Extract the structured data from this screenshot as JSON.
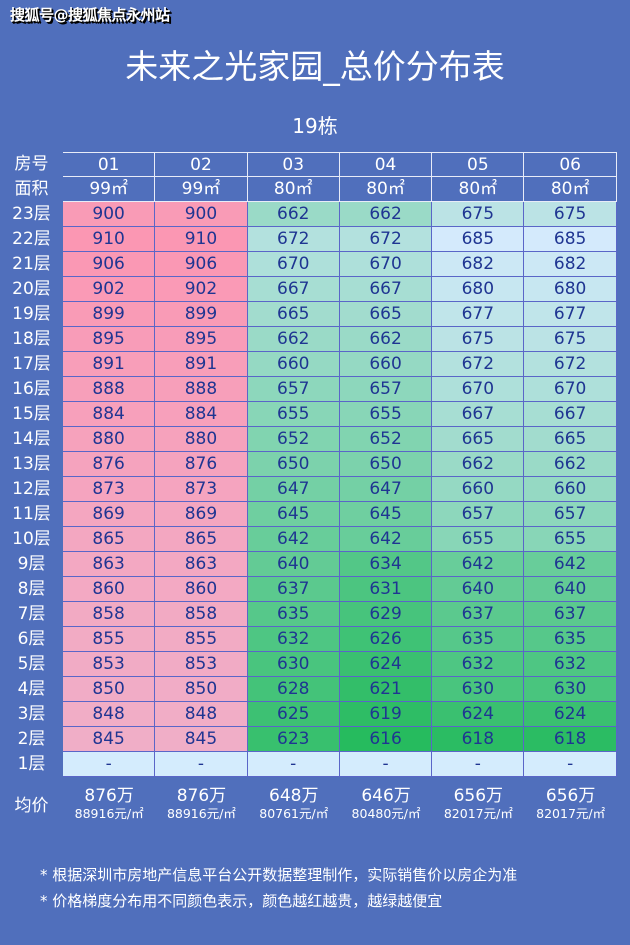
{
  "watermark": "搜狐号@搜狐焦点永州站",
  "title": "未来之光家园_总价分布表",
  "building": "19栋",
  "header": {
    "room_label": "房号",
    "area_label": "面积",
    "rooms": [
      "01",
      "02",
      "03",
      "04",
      "05",
      "06"
    ],
    "areas": [
      "99㎡",
      "99㎡",
      "80㎡",
      "80㎡",
      "80㎡",
      "80㎡"
    ]
  },
  "floors": [
    {
      "label": "23层",
      "values": [
        "900",
        "900",
        "662",
        "662",
        "675",
        "675"
      ]
    },
    {
      "label": "22层",
      "values": [
        "910",
        "910",
        "672",
        "672",
        "685",
        "685"
      ]
    },
    {
      "label": "21层",
      "values": [
        "906",
        "906",
        "670",
        "670",
        "682",
        "682"
      ]
    },
    {
      "label": "20层",
      "values": [
        "902",
        "902",
        "667",
        "667",
        "680",
        "680"
      ]
    },
    {
      "label": "19层",
      "values": [
        "899",
        "899",
        "665",
        "665",
        "677",
        "677"
      ]
    },
    {
      "label": "18层",
      "values": [
        "895",
        "895",
        "662",
        "662",
        "675",
        "675"
      ]
    },
    {
      "label": "17层",
      "values": [
        "891",
        "891",
        "660",
        "660",
        "672",
        "672"
      ]
    },
    {
      "label": "16层",
      "values": [
        "888",
        "888",
        "657",
        "657",
        "670",
        "670"
      ]
    },
    {
      "label": "15层",
      "values": [
        "884",
        "884",
        "655",
        "655",
        "667",
        "667"
      ]
    },
    {
      "label": "14层",
      "values": [
        "880",
        "880",
        "652",
        "652",
        "665",
        "665"
      ]
    },
    {
      "label": "13层",
      "values": [
        "876",
        "876",
        "650",
        "650",
        "662",
        "662"
      ]
    },
    {
      "label": "12层",
      "values": [
        "873",
        "873",
        "647",
        "647",
        "660",
        "660"
      ]
    },
    {
      "label": "11层",
      "values": [
        "869",
        "869",
        "645",
        "645",
        "657",
        "657"
      ]
    },
    {
      "label": "10层",
      "values": [
        "865",
        "865",
        "642",
        "642",
        "655",
        "655"
      ]
    },
    {
      "label": "9层",
      "values": [
        "863",
        "863",
        "640",
        "634",
        "642",
        "642"
      ]
    },
    {
      "label": "8层",
      "values": [
        "860",
        "860",
        "637",
        "631",
        "640",
        "640"
      ]
    },
    {
      "label": "7层",
      "values": [
        "858",
        "858",
        "635",
        "629",
        "637",
        "637"
      ]
    },
    {
      "label": "6层",
      "values": [
        "855",
        "855",
        "632",
        "626",
        "635",
        "635"
      ]
    },
    {
      "label": "5层",
      "values": [
        "853",
        "853",
        "630",
        "624",
        "632",
        "632"
      ]
    },
    {
      "label": "4层",
      "values": [
        "850",
        "850",
        "628",
        "621",
        "630",
        "630"
      ]
    },
    {
      "label": "3层",
      "values": [
        "848",
        "848",
        "625",
        "619",
        "624",
        "624"
      ]
    },
    {
      "label": "2层",
      "values": [
        "845",
        "845",
        "623",
        "616",
        "618",
        "618"
      ]
    },
    {
      "label": "1层",
      "values": [
        "-",
        "-",
        "-",
        "-",
        "-",
        "-"
      ]
    }
  ],
  "average": {
    "label": "均价",
    "totals": [
      "876万",
      "876万",
      "648万",
      "646万",
      "656万",
      "656万"
    ],
    "unit_prices": [
      "88916元/㎡",
      "88916元/㎡",
      "80761元/㎡",
      "80480元/㎡",
      "82017元/㎡",
      "82017元/㎡"
    ]
  },
  "notes": [
    "* 根据深圳市房地产信息平台公开数据整理制作，实际销售价以房企为准",
    "* 价格梯度分布用不同颜色表示，颜色越红越贵，越绿越便宜"
  ],
  "colors": {
    "background": "#506fbc",
    "cell_text": "#1f3592",
    "low": "#26bb5e",
    "mid": "#d4eafc",
    "high": "#fb97b3",
    "empty": "#d4ecfd"
  }
}
